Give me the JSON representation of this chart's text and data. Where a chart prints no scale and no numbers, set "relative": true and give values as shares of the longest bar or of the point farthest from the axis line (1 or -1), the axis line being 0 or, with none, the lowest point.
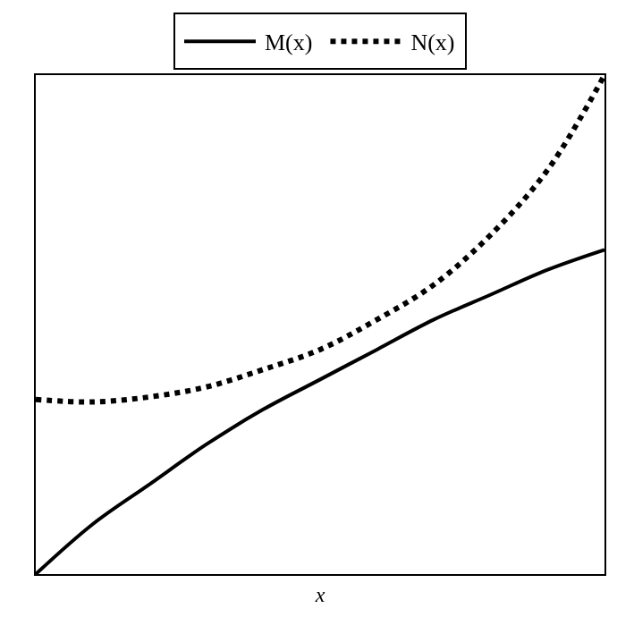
{
  "chart_data": {
    "type": "line",
    "xlabel": "x",
    "relative": true,
    "legend": "top",
    "marker": "none",
    "categories": [
      null,
      null,
      null,
      null,
      null,
      null,
      null,
      null,
      null,
      null,
      null
    ],
    "series": [
      {
        "name": "M(x)",
        "color": "#000000",
        "line_style": "solid",
        "values": [
          0,
          0.1,
          0.18,
          0.26,
          0.33,
          0.39,
          0.45,
          0.51,
          0.56,
          0.61,
          0.65
        ]
      },
      {
        "name": "N(x)",
        "color": "#000000",
        "line_style": "dotted",
        "values": [
          0.35,
          0.345,
          0.355,
          0.375,
          0.41,
          0.45,
          0.51,
          0.58,
          0.68,
          0.81,
          1.0
        ]
      }
    ]
  }
}
